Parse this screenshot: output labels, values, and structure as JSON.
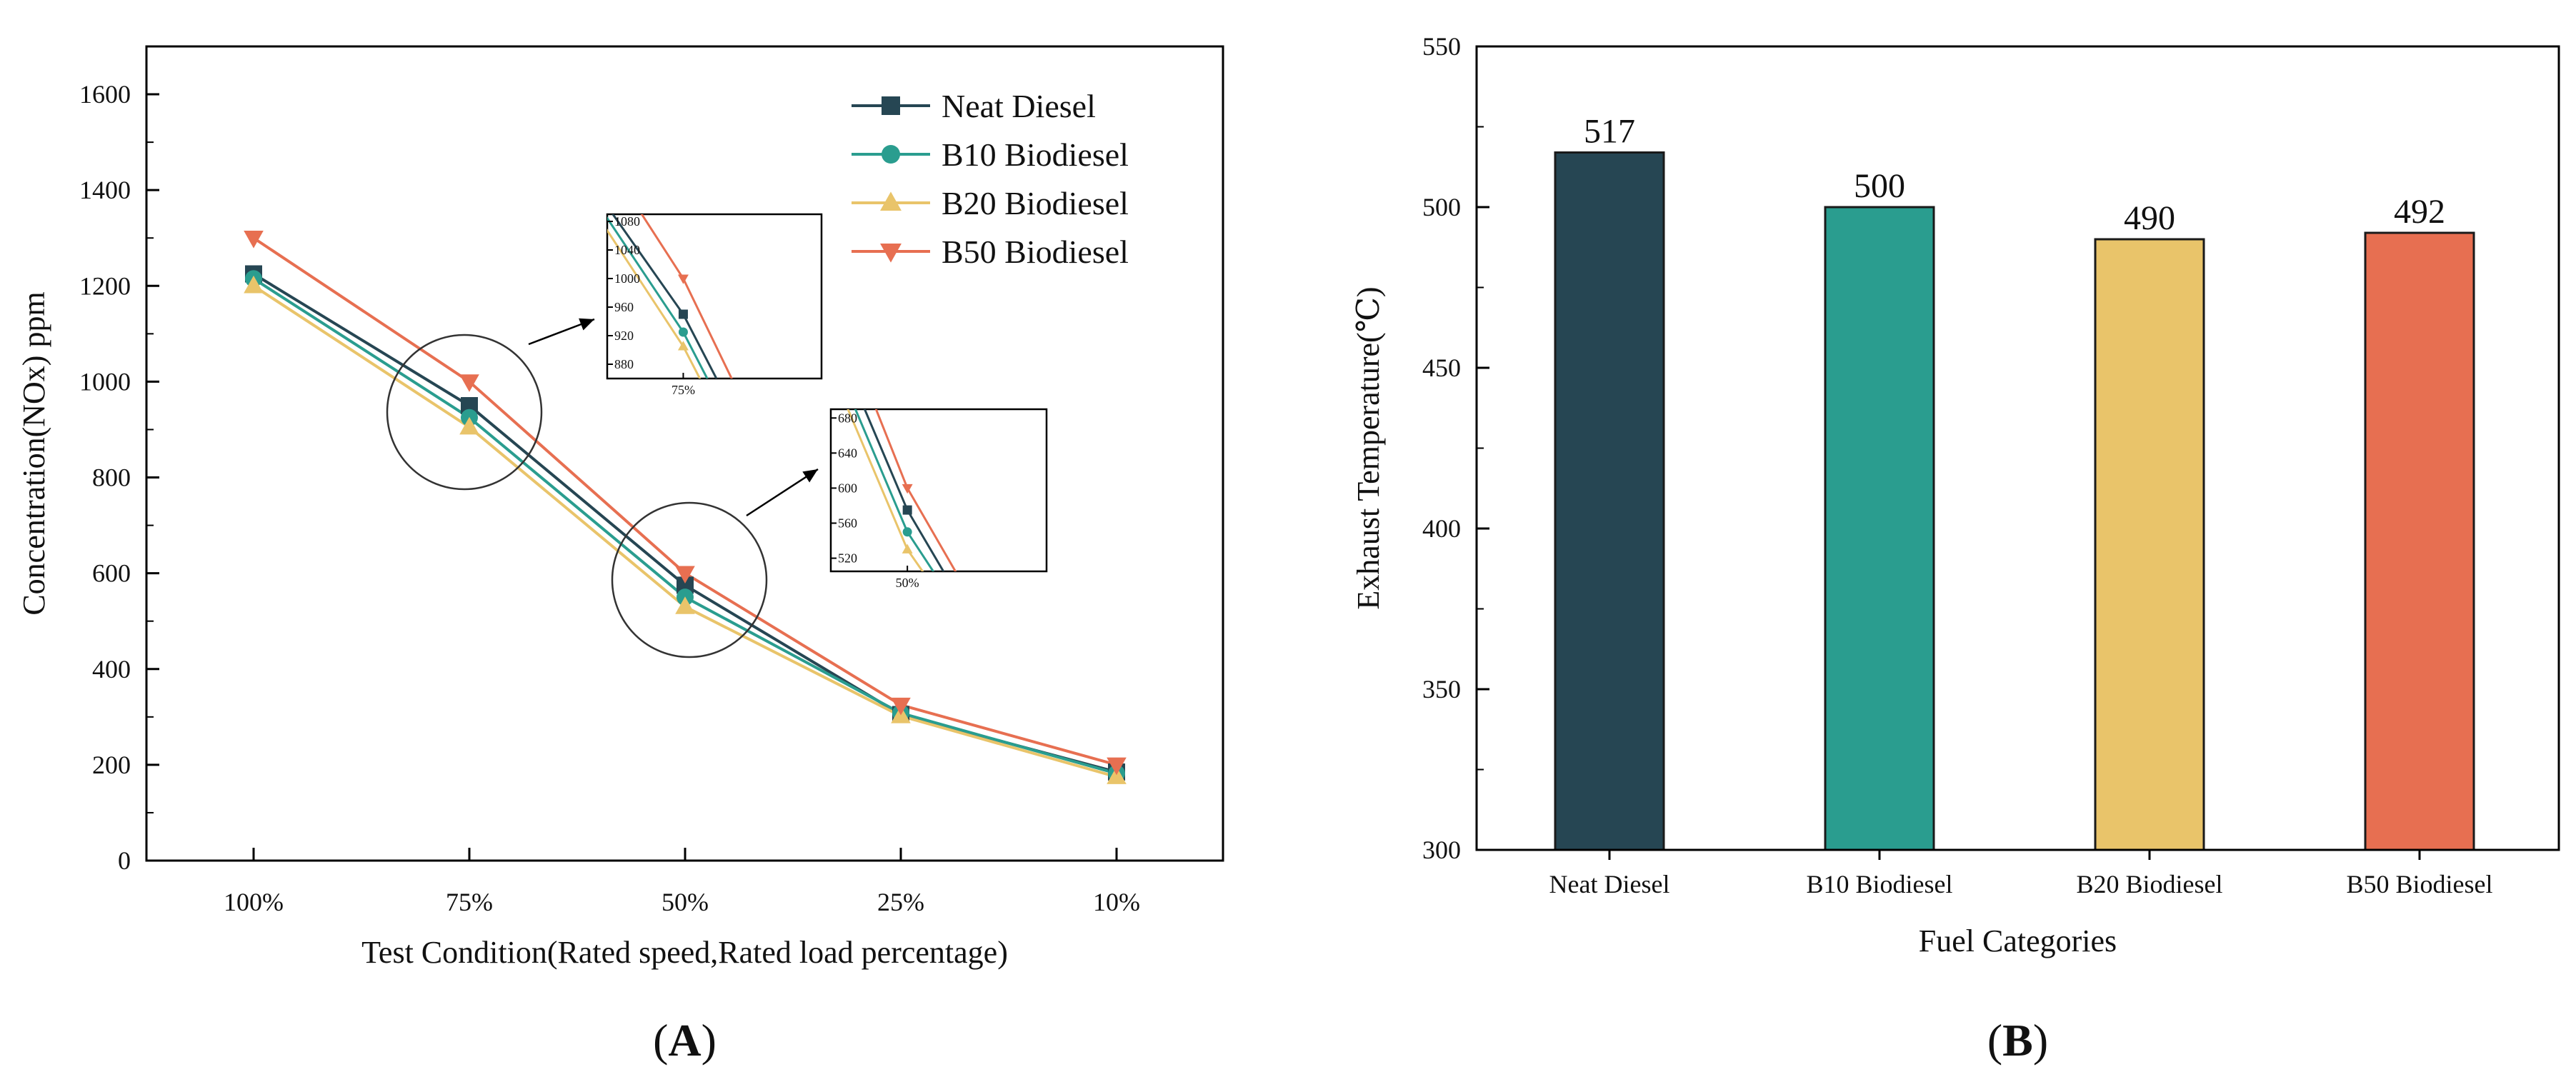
{
  "chart_data": [
    {
      "type": "line",
      "panel": "A",
      "panel_label": "A",
      "categories": [
        "100%",
        "75%",
        "50%",
        "25%",
        "10%"
      ],
      "xlabel": "Test Condition(Rated speed,Rated load percentage)",
      "ylabel": "Concentration(NOx) ppm",
      "ylim": [
        0,
        1700
      ],
      "yticks": [
        "0",
        "200",
        "400",
        "600",
        "800",
        "1000",
        "1200",
        "1400",
        "1600"
      ],
      "legend_position": "top-right",
      "series": [
        {
          "name": "Neat Diesel",
          "color": "#264653",
          "marker": "square",
          "values": [
            1225,
            950,
            575,
            305,
            185
          ]
        },
        {
          "name": "B10 Biodiesel",
          "color": "#2a9d8f",
          "marker": "circle",
          "values": [
            1215,
            925,
            550,
            308,
            182
          ]
        },
        {
          "name": "B20 Biodiesel",
          "color": "#e9c46a",
          "marker": "triangle-up",
          "values": [
            1200,
            905,
            530,
            302,
            175
          ]
        },
        {
          "name": "B50 Biodiesel",
          "color": "#e76f51",
          "marker": "triangle-down",
          "values": [
            1300,
            1000,
            600,
            325,
            200
          ]
        }
      ],
      "insets": [
        {
          "category": "75%",
          "yticks": [
            "880",
            "920",
            "960",
            "1000",
            "1040",
            "1080"
          ],
          "ylim": [
            860,
            1090
          ]
        },
        {
          "category": "50%",
          "yticks": [
            "520",
            "560",
            "600",
            "640",
            "680"
          ],
          "ylim": [
            505,
            690
          ]
        }
      ]
    },
    {
      "type": "bar",
      "panel": "B",
      "panel_label": "B",
      "categories": [
        "Neat Diesel",
        "B10 Biodiesel",
        "B20 Biodiesel",
        "B50 Biodiesel"
      ],
      "values": [
        517,
        500,
        490,
        492
      ],
      "data_labels": [
        "517",
        "500",
        "490",
        "492"
      ],
      "colors": [
        "#264653",
        "#2a9d8f",
        "#e9c46a",
        "#e76f51"
      ],
      "xlabel": "Fuel Categories",
      "ylabel": "Exhaust Temperature(℃)",
      "ylim": [
        300,
        550
      ],
      "yticks": [
        "300",
        "350",
        "400",
        "450",
        "500",
        "550"
      ]
    }
  ]
}
